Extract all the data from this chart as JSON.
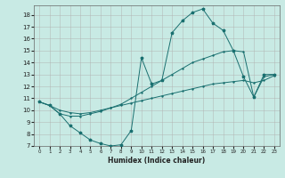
{
  "xlabel": "Humidex (Indice chaleur)",
  "xlim": [
    -0.5,
    23.5
  ],
  "ylim": [
    7,
    18.8
  ],
  "yticks": [
    7,
    8,
    9,
    10,
    11,
    12,
    13,
    14,
    15,
    16,
    17,
    18
  ],
  "xticks": [
    0,
    1,
    2,
    3,
    4,
    5,
    6,
    7,
    8,
    9,
    10,
    11,
    12,
    13,
    14,
    15,
    16,
    17,
    18,
    19,
    20,
    21,
    22,
    23
  ],
  "bg_color": "#c8eae4",
  "line_color": "#1a7070",
  "series1_x": [
    0,
    1,
    2,
    3,
    4,
    5,
    6,
    7,
    8,
    9,
    10,
    11,
    12,
    13,
    14,
    15,
    16,
    17,
    18,
    19,
    20,
    21,
    22,
    23
  ],
  "series1_y": [
    10.7,
    10.4,
    9.7,
    8.7,
    8.1,
    7.5,
    7.2,
    7.0,
    7.1,
    8.3,
    14.4,
    12.2,
    12.5,
    16.5,
    17.5,
    18.2,
    18.5,
    17.3,
    16.7,
    15.0,
    12.8,
    11.1,
    13.0,
    13.0
  ],
  "series2_x": [
    0,
    1,
    2,
    3,
    4,
    5,
    6,
    7,
    8,
    9,
    10,
    11,
    12,
    13,
    14,
    15,
    16,
    17,
    18,
    19,
    20,
    21,
    22,
    23
  ],
  "series2_y": [
    10.7,
    10.4,
    10.0,
    9.8,
    9.7,
    9.8,
    10.0,
    10.2,
    10.4,
    10.6,
    10.8,
    11.0,
    11.2,
    11.4,
    11.6,
    11.8,
    12.0,
    12.2,
    12.3,
    12.4,
    12.5,
    12.3,
    12.5,
    12.9
  ],
  "series3_x": [
    0,
    1,
    2,
    3,
    4,
    5,
    6,
    7,
    8,
    9,
    10,
    11,
    12,
    13,
    14,
    15,
    16,
    17,
    18,
    19,
    20,
    21,
    22,
    23
  ],
  "series3_y": [
    10.7,
    10.4,
    9.7,
    9.5,
    9.5,
    9.7,
    9.9,
    10.2,
    10.5,
    11.0,
    11.5,
    12.0,
    12.5,
    13.0,
    13.5,
    14.0,
    14.3,
    14.6,
    14.9,
    15.0,
    14.9,
    11.1,
    12.8,
    13.0
  ]
}
